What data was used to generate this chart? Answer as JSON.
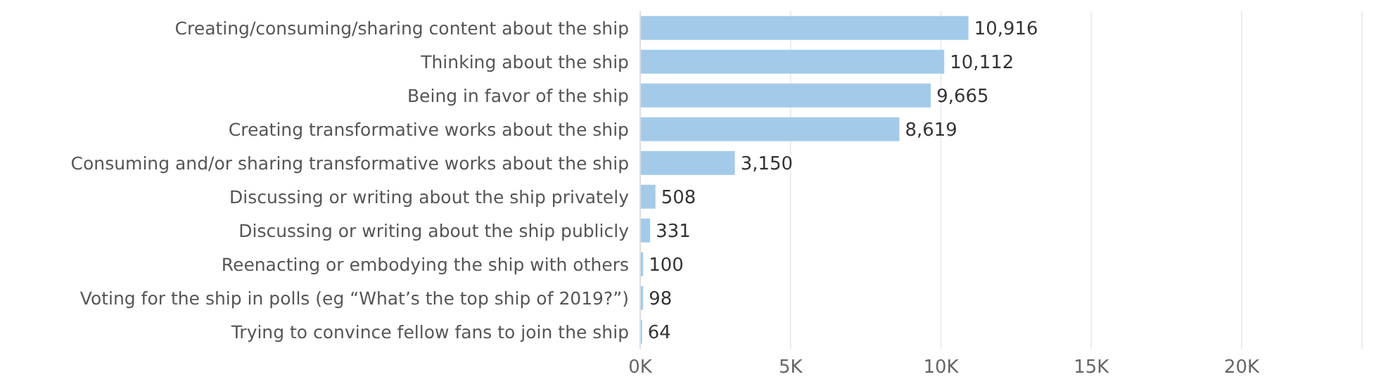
{
  "chart_data": {
    "type": "bar",
    "orientation": "horizontal",
    "categories": [
      "Creating/consuming/sharing content about the ship",
      "Thinking about the ship",
      "Being in favor of the ship",
      "Creating transformative works about the ship",
      "Consuming and/or sharing transformative works about the ship",
      "Discussing or writing about the ship privately",
      "Discussing or writing about the ship publicly",
      "Reenacting or embodying the ship with others",
      "Voting for the ship in polls (eg “What’s the top ship of 2019?”)",
      "Trying to convince fellow fans to join the ship"
    ],
    "values": [
      10916,
      10112,
      9665,
      8619,
      3150,
      508,
      331,
      100,
      98,
      64
    ],
    "value_labels": [
      "10,916",
      "10,112",
      "9,665",
      "8,619",
      "3,150",
      "508",
      "331",
      "100",
      "98",
      "64"
    ],
    "color": "#a3cbe9",
    "xlim": [
      0,
      24000
    ],
    "xticks": [
      {
        "value": 0,
        "label": "0K"
      },
      {
        "value": 5000,
        "label": "5K"
      },
      {
        "value": 10000,
        "label": "10K"
      },
      {
        "value": 15000,
        "label": "15K"
      },
      {
        "value": 20000,
        "label": "20K"
      }
    ],
    "grid": "x"
  }
}
